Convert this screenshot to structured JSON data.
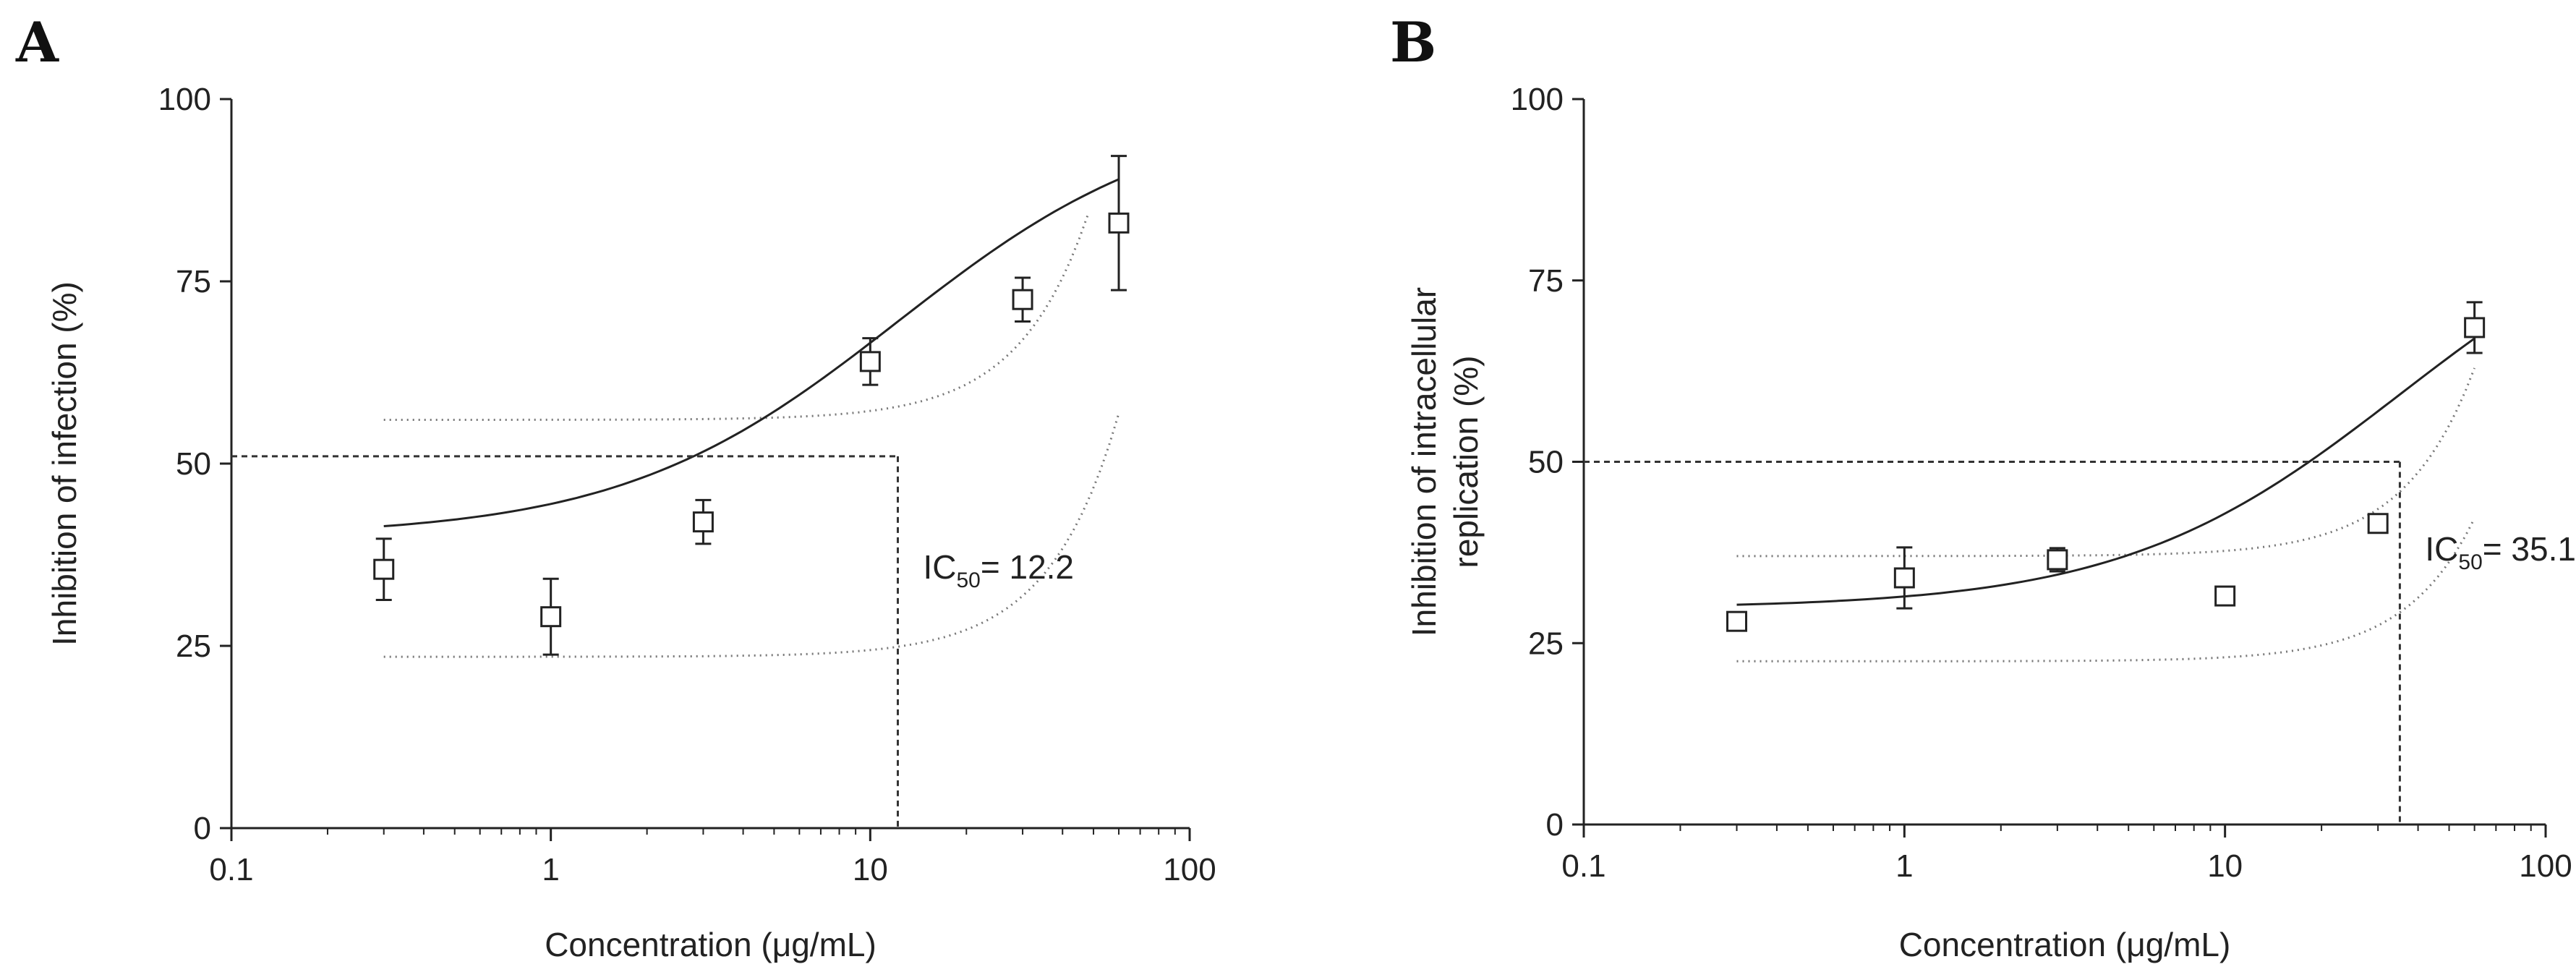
{
  "chart_data": [
    {
      "type": "scatter",
      "panel_label": "A",
      "title": "",
      "xlabel": "Concentration (μg/mL)",
      "ylabel": "Inhibition of infection (%)",
      "xscale": "log",
      "xlim": [
        0.1,
        100
      ],
      "ylim": [
        0,
        100
      ],
      "x_tick_labels": [
        "0.1",
        "1",
        "10",
        "100"
      ],
      "y_tick_labels": [
        "0",
        "25",
        "50",
        "75",
        "100"
      ],
      "points": [
        {
          "x": 0.3,
          "y": 35.5,
          "err": 4.2
        },
        {
          "x": 1,
          "y": 29.0,
          "err": 5.2
        },
        {
          "x": 3,
          "y": 42.0,
          "err": 3.0
        },
        {
          "x": 10,
          "y": 64.0,
          "err": 3.2
        },
        {
          "x": 30,
          "y": 72.5,
          "err": 3.0
        },
        {
          "x": 60,
          "y": 83.0,
          "err": 9.2
        }
      ],
      "fit": {
        "name": "fit",
        "bottom": 40.0,
        "ic50": 12.2,
        "top_at": {
          "x": 60,
          "y": 89.0
        },
        "xrange": [
          0.3,
          60
        ]
      },
      "band_upper": {
        "name": "upper 95% band",
        "bottom": 56.0,
        "k": 0.0122,
        "xrange": [
          0.3,
          48
        ]
      },
      "band_lower": {
        "name": "lower 95% band",
        "bottom": 23.5,
        "k": 0.0122,
        "scale": 0.76,
        "xrange": [
          0.3,
          60
        ]
      },
      "reference_lines": {
        "y": 51,
        "x": 12.2
      },
      "annotation": {
        "label": "IC",
        "subscript": "50",
        "value": "= 12.2",
        "x": 12.2
      },
      "legend": "none"
    },
    {
      "type": "scatter",
      "panel_label": "B",
      "title": "",
      "xlabel": "Concentration (μg/mL)",
      "ylabel_lines": [
        "Inhibition of intracellular",
        "replication (%)"
      ],
      "xscale": "log",
      "xlim": [
        0.1,
        100
      ],
      "ylim": [
        0,
        100
      ],
      "x_tick_labels": [
        "0.1",
        "1",
        "10",
        "100"
      ],
      "y_tick_labels": [
        "0",
        "25",
        "50",
        "75",
        "100"
      ],
      "points": [
        {
          "x": 0.3,
          "y": 28.0,
          "err": 0.8
        },
        {
          "x": 1,
          "y": 34.0,
          "err": 4.2
        },
        {
          "x": 3,
          "y": 36.5,
          "err": 1.6
        },
        {
          "x": 10,
          "y": 31.5,
          "err": 0.5
        },
        {
          "x": 30,
          "y": 41.5,
          "err": 1.2
        },
        {
          "x": 60,
          "y": 68.5,
          "err": 3.5
        }
      ],
      "fit": {
        "name": "fit",
        "bottom": 29.8,
        "ic50": 35.1,
        "top_at": {
          "x": 60,
          "y": 67.0
        },
        "xrange": [
          0.3,
          60
        ]
      },
      "band_upper": {
        "name": "upper 95% band",
        "bottom": 37.0,
        "k": 0.0072,
        "xrange": [
          0.3,
          60
        ]
      },
      "band_lower": {
        "name": "lower 95% band",
        "bottom": 22.5,
        "k": 0.0072,
        "scale": 0.76,
        "xrange": [
          0.3,
          60
        ]
      },
      "reference_lines": {
        "y": 50,
        "x": 35.1
      },
      "annotation": {
        "label": "IC",
        "subscript": "50",
        "value": "= 35.1",
        "x": 35.1
      },
      "legend": "none"
    }
  ]
}
